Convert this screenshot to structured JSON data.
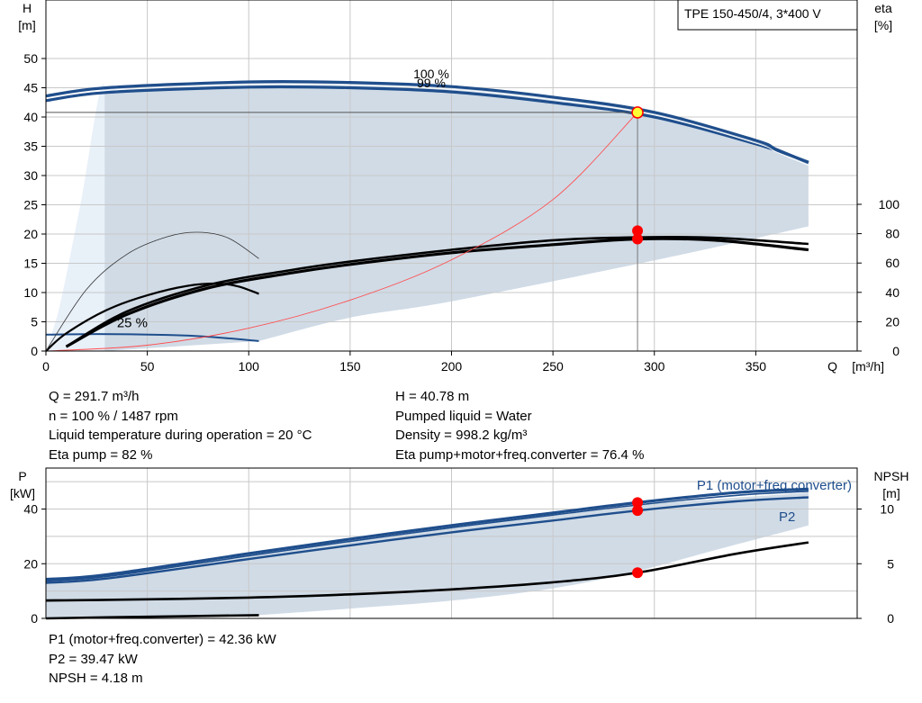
{
  "chart_data": [
    {
      "type": "line",
      "title": "TPE 150-450/4, 3*400 V",
      "xlabel": "Q [m³/h]",
      "ylabel": "H\n[m]",
      "y2label": "eta\n[%]",
      "xlim": [
        0,
        400
      ],
      "ylim": [
        0,
        60
      ],
      "y2lim": [
        0,
        100
      ],
      "xticks": [
        0,
        50,
        100,
        150,
        200,
        250,
        300,
        350
      ],
      "yticks": [
        0,
        5,
        10,
        15,
        20,
        25,
        30,
        35,
        40,
        45,
        50
      ],
      "y2ticks": [
        0,
        20,
        40,
        60,
        80,
        100
      ],
      "grid": true,
      "annotations": [
        "100 %",
        "99 %",
        "25 %"
      ],
      "operating_point": {
        "q": 291.7,
        "h": 40.78,
        "eta_pump": 82,
        "eta_total": 76.4
      },
      "series": [
        {
          "name": "100 %",
          "axis": "H",
          "x": [
            0,
            30,
            100,
            150,
            200,
            250,
            300,
            350,
            360,
            376
          ],
          "y": [
            43.6,
            45.0,
            46.0,
            45.9,
            45.2,
            43.4,
            40.8,
            36.0,
            34.5,
            32.2
          ]
        },
        {
          "name": "99 %",
          "axis": "H",
          "x": [
            0,
            30,
            100,
            150,
            200,
            250,
            300,
            350,
            376
          ],
          "y": [
            42.8,
            44.2,
            45.1,
            45.0,
            44.3,
            42.5,
            40.0,
            35.4,
            32.3
          ]
        },
        {
          "name": "25 %",
          "axis": "H",
          "x": [
            0,
            25,
            60,
            80,
            105
          ],
          "y": [
            2.8,
            2.9,
            2.75,
            2.45,
            1.7
          ]
        },
        {
          "name": "",
          "axis": "eta",
          "x": [
            10,
            40,
            80,
            120,
            150,
            200,
            250,
            291.7,
            330,
            376
          ],
          "y": [
            3,
            27,
            45,
            55,
            61,
            69,
            75.5,
            77.5,
            77.2,
            73
          ]
        },
        {
          "name": "",
          "axis": "eta",
          "x": [
            10,
            40,
            80,
            120,
            150,
            200,
            250,
            291.7,
            330,
            376
          ],
          "y": [
            3,
            25,
            43,
            53,
            59,
            67,
            72.5,
            76.4,
            75.5,
            69
          ]
        },
        {
          "name": "",
          "axis": "eta",
          "x": [
            0,
            10,
            30,
            50,
            70,
            85,
            95,
            105
          ],
          "y": [
            0,
            12,
            28,
            38,
            44.5,
            46,
            44,
            39
          ]
        },
        {
          "name": "",
          "axis": "eta",
          "x": [
            0,
            20,
            40,
            60,
            75,
            90,
            105
          ],
          "y": [
            0,
            42,
            66,
            78,
            81,
            77,
            63
          ]
        },
        {
          "name": "",
          "axis": "H",
          "x": [
            0,
            50,
            100,
            150,
            200,
            250,
            291.7
          ],
          "y": [
            0,
            1.0,
            3.9,
            8.7,
            15.6,
            25.9,
            40.78
          ]
        }
      ]
    },
    {
      "type": "line",
      "ylabel": "P\n[kW]",
      "y2label": "NPSH\n[m]",
      "xlim": [
        0,
        400
      ],
      "ylim": [
        0,
        55
      ],
      "y2lim": [
        0,
        13.75
      ],
      "yticks": [
        0,
        20,
        40
      ],
      "y2ticks": [
        0,
        5,
        10
      ],
      "grid": true,
      "annotations": [
        "P1 (motor+freq.converter)",
        "P2"
      ],
      "series": [
        {
          "name": "P1 (motor+freq.converter)",
          "axis": "P",
          "x": [
            0,
            30,
            100,
            150,
            200,
            250,
            291.7,
            340,
            376
          ],
          "y": [
            14.3,
            16.0,
            23.7,
            29.0,
            34.0,
            38.6,
            42.36,
            46.0,
            47.3
          ]
        },
        {
          "name": "",
          "axis": "P",
          "x": [
            0,
            30,
            100,
            150,
            200,
            250,
            291.7,
            340,
            376
          ],
          "y": [
            13.7,
            15.3,
            22.9,
            28.2,
            33.2,
            37.8,
            41.5,
            45.0,
            46.5
          ]
        },
        {
          "name": "P2",
          "axis": "P",
          "x": [
            0,
            30,
            100,
            150,
            200,
            250,
            291.7,
            340,
            376
          ],
          "y": [
            13.0,
            14.6,
            21.7,
            26.7,
            31.5,
            35.8,
            39.47,
            42.8,
            44.3
          ]
        },
        {
          "name": "",
          "axis": "P",
          "x": [
            0,
            30,
            105
          ],
          "y": [
            0,
            0.4,
            1.2
          ]
        },
        {
          "name": "",
          "axis": "NPSH",
          "x": [
            0,
            26,
            100,
            150,
            200,
            250,
            291.7,
            340,
            376
          ],
          "y": [
            1.65,
            1.68,
            1.9,
            2.2,
            2.65,
            3.3,
            4.18,
            5.9,
            6.95
          ]
        }
      ]
    }
  ],
  "info_left": [
    "Q = 291.7 m³/h",
    "n = 100 % / 1487 rpm",
    "Liquid temperature during operation = 20 °C",
    "Eta pump = 82 %"
  ],
  "info_right": [
    "H = 40.78 m",
    "Pumped liquid = Water",
    "Density = 998.2 kg/m³",
    "Eta pump+motor+freq.converter = 76.4 %"
  ],
  "info_bottom": [
    "P1 (motor+freq.converter) = 42.36 kW",
    "P2 = 39.47 kW",
    "NPSH = 4.18 m"
  ],
  "colors": {
    "blue": "#1f4e8c",
    "envelope": "#d0dbe6",
    "envelope_light": "#e8f0f8",
    "grid": "#c8c8c8",
    "red": "#ff0000",
    "thin_red": "#ff4d4d",
    "marker_yellow": "#ffff33"
  }
}
